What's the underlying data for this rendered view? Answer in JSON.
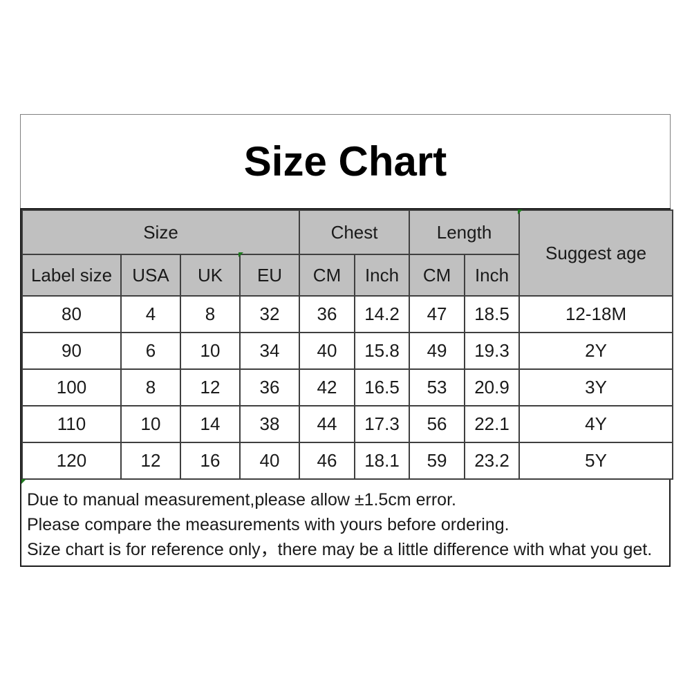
{
  "title": "Size Chart",
  "colors": {
    "header_bg": "#c0c0c0",
    "border_inner": "#3f3f3f",
    "border_strong": "#1c1c1c",
    "border_frame": "#7f7f7f",
    "flag": "#1f7a1f",
    "text": "#1a1a1a"
  },
  "table": {
    "header_groups": [
      {
        "label": "Size",
        "colspan": 4
      },
      {
        "label": "Chest",
        "colspan": 2
      },
      {
        "label": "Length",
        "colspan": 2
      },
      {
        "label": "Suggest age",
        "rowspan": 2
      }
    ],
    "columns": [
      "Label size",
      "USA",
      "UK",
      "EU",
      "CM",
      "Inch",
      "CM",
      "Inch"
    ],
    "rows": [
      [
        "80",
        "4",
        "8",
        "32",
        "36",
        "14.2",
        "47",
        "18.5",
        "12-18M"
      ],
      [
        "90",
        "6",
        "10",
        "34",
        "40",
        "15.8",
        "49",
        "19.3",
        "2Y"
      ],
      [
        "100",
        "8",
        "12",
        "36",
        "42",
        "16.5",
        "53",
        "20.9",
        "3Y"
      ],
      [
        "110",
        "10",
        "14",
        "38",
        "44",
        "17.3",
        "56",
        "22.1",
        "4Y"
      ],
      [
        "120",
        "12",
        "16",
        "40",
        "46",
        "18.1",
        "59",
        "23.2",
        "5Y"
      ]
    ]
  },
  "notes": {
    "lines": [
      "Due to manual measurement,please allow ±1.5cm error.",
      "Please compare the measurements with yours before ordering.",
      "Size chart is for reference only，there may be a little difference with what you get."
    ]
  }
}
